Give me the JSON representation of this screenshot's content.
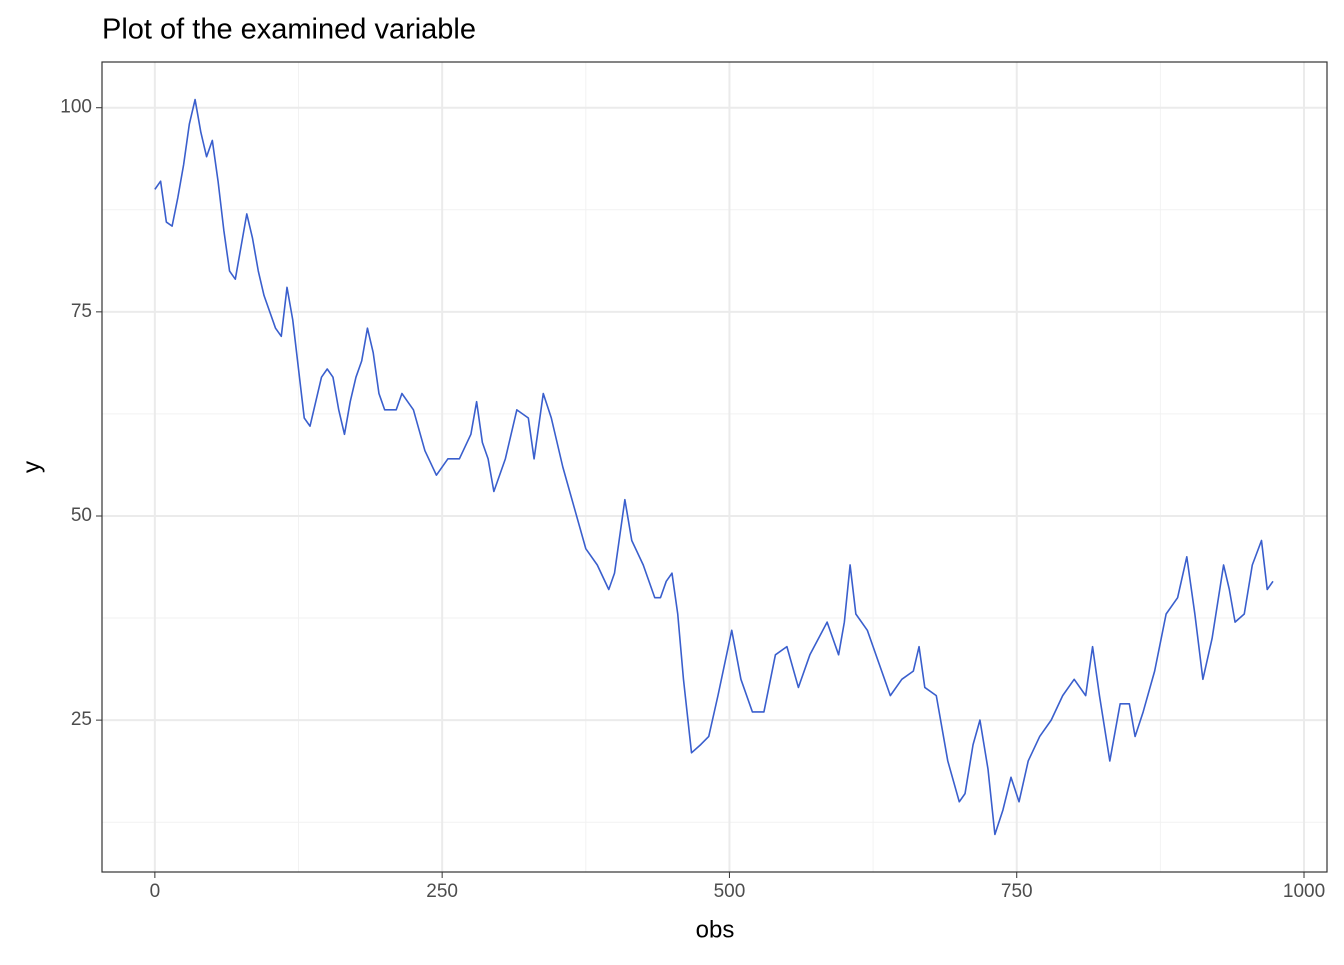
{
  "chart_data": {
    "type": "line",
    "title": "Plot of the examined variable",
    "x_label": "obs",
    "y_label": "y",
    "xlim": [
      -46,
      1020
    ],
    "ylim": [
      6.4,
      105.6
    ],
    "xticks": [
      0,
      250,
      500,
      750,
      1000
    ],
    "yticks": [
      25,
      50,
      75,
      100
    ],
    "minor_xticks": [
      125,
      375,
      625,
      875
    ],
    "minor_yticks": [
      12.5,
      37.5,
      62.5,
      87.5
    ],
    "grid": true,
    "series": [
      {
        "color": "#3a5fcd",
        "x": [
          0,
          5,
          10,
          15,
          20,
          25,
          30,
          35,
          40,
          45,
          50,
          55,
          60,
          65,
          70,
          75,
          80,
          85,
          90,
          95,
          100,
          105,
          110,
          115,
          120,
          125,
          130,
          135,
          140,
          145,
          150,
          155,
          160,
          165,
          170,
          175,
          180,
          185,
          190,
          195,
          200,
          210,
          215,
          220,
          225,
          235,
          245,
          255,
          265,
          275,
          280,
          285,
          290,
          295,
          305,
          315,
          325,
          330,
          338,
          345,
          350,
          355,
          365,
          375,
          385,
          395,
          400,
          409,
          415,
          425,
          435,
          440,
          445,
          450,
          455,
          460,
          467,
          475,
          482,
          490,
          502,
          510,
          520,
          530,
          540,
          550,
          560,
          570,
          585,
          595,
          600,
          605,
          610,
          620,
          630,
          640,
          650,
          660,
          665,
          670,
          680,
          690,
          700,
          705,
          712,
          718,
          725,
          731,
          738,
          745,
          752,
          760,
          770,
          780,
          790,
          800,
          810,
          816,
          822,
          831,
          840,
          848,
          853,
          860,
          870,
          880,
          890,
          898,
          905,
          912,
          920,
          930,
          935,
          940,
          948,
          955,
          963,
          968,
          973
        ],
        "values": [
          90,
          91,
          86,
          85.5,
          89,
          93,
          98,
          101,
          97,
          94,
          96,
          91,
          85,
          80,
          79,
          83,
          87,
          84,
          80,
          77,
          75,
          73,
          72,
          78,
          74,
          68,
          62,
          61,
          64,
          67,
          68,
          67,
          63,
          60,
          64,
          67,
          69,
          73,
          70,
          65,
          63,
          63,
          65,
          64,
          63,
          58,
          55,
          57,
          57,
          60,
          64,
          59,
          57,
          53,
          57,
          63,
          62,
          57,
          65,
          62,
          59,
          56,
          51,
          46,
          44,
          41,
          43,
          52,
          47,
          44,
          40,
          40,
          42,
          43,
          38,
          30,
          21,
          22,
          23,
          28,
          36,
          30,
          26,
          26,
          33,
          34,
          29,
          33,
          37,
          33,
          37,
          44,
          38,
          36,
          32,
          28,
          30,
          31,
          34,
          29,
          28,
          20,
          15,
          16,
          22,
          25,
          19,
          11,
          14,
          18,
          15,
          20,
          23,
          25,
          28,
          30,
          28,
          34,
          28,
          20,
          27,
          27,
          23,
          26,
          31,
          38,
          40,
          45,
          38,
          30,
          35,
          44,
          41,
          37,
          38,
          44,
          47,
          41,
          42
        ]
      }
    ]
  }
}
